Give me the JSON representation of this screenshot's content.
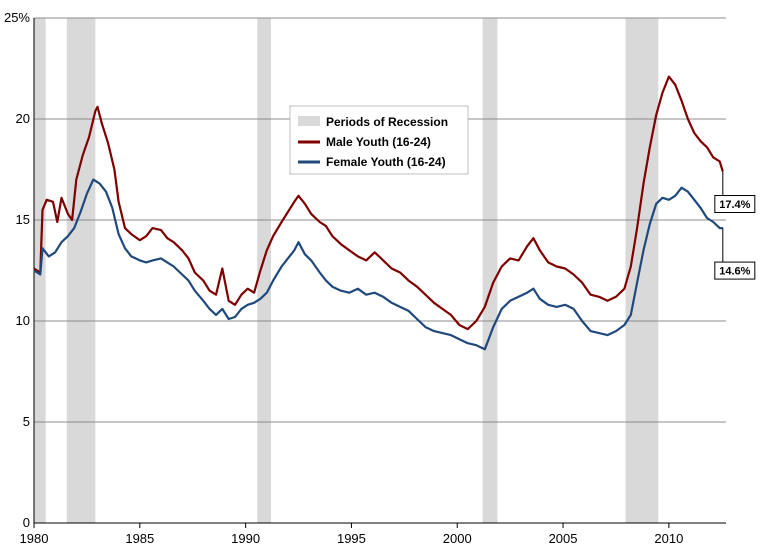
{
  "chart_data": {
    "type": "line",
    "title": "",
    "xlabel": "",
    "ylabel": "",
    "xlim": [
      1980.0,
      2012.7
    ],
    "ylim": [
      0,
      25
    ],
    "grid": true,
    "legend_position": "center-top",
    "x_ticks": [
      {
        "value": 1980,
        "label": "1980"
      },
      {
        "value": 1985,
        "label": "1985"
      },
      {
        "value": 1990,
        "label": "1990"
      },
      {
        "value": 1995,
        "label": "1995"
      },
      {
        "value": 2000,
        "label": "2000"
      },
      {
        "value": 2005,
        "label": "2005"
      },
      {
        "value": 2010,
        "label": "2010"
      }
    ],
    "y_ticks": [
      {
        "value": 0,
        "label": "0"
      },
      {
        "value": 5,
        "label": "5"
      },
      {
        "value": 10,
        "label": "10"
      },
      {
        "value": 15,
        "label": "15"
      },
      {
        "value": 20,
        "label": "20"
      },
      {
        "value": 25,
        "label": "25%"
      }
    ],
    "recessions": {
      "name": "Periods of Recession",
      "color": "#d9d9d9",
      "periods": [
        [
          1980.0,
          1980.55
        ],
        [
          1981.55,
          1982.9
        ],
        [
          1990.55,
          1991.2
        ],
        [
          2001.2,
          2001.9
        ],
        [
          2007.95,
          2009.5
        ]
      ]
    },
    "series": [
      {
        "name": "Male Youth (16-24)",
        "color": "#7f0000",
        "points": [
          [
            1980.0,
            12.6
          ],
          [
            1980.3,
            12.4
          ],
          [
            1980.4,
            15.5
          ],
          [
            1980.6,
            16.0
          ],
          [
            1980.9,
            15.9
          ],
          [
            1981.1,
            14.9
          ],
          [
            1981.3,
            16.1
          ],
          [
            1981.6,
            15.3
          ],
          [
            1981.8,
            15.0
          ],
          [
            1982.0,
            17.0
          ],
          [
            1982.3,
            18.2
          ],
          [
            1982.6,
            19.1
          ],
          [
            1982.9,
            20.4
          ],
          [
            1983.0,
            20.6
          ],
          [
            1983.2,
            19.8
          ],
          [
            1983.5,
            18.8
          ],
          [
            1983.8,
            17.5
          ],
          [
            1984.0,
            15.9
          ],
          [
            1984.3,
            14.6
          ],
          [
            1984.6,
            14.3
          ],
          [
            1985.0,
            14.0
          ],
          [
            1985.3,
            14.2
          ],
          [
            1985.6,
            14.6
          ],
          [
            1986.0,
            14.5
          ],
          [
            1986.3,
            14.1
          ],
          [
            1986.6,
            13.9
          ],
          [
            1987.0,
            13.5
          ],
          [
            1987.3,
            13.1
          ],
          [
            1987.6,
            12.4
          ],
          [
            1988.0,
            12.0
          ],
          [
            1988.3,
            11.5
          ],
          [
            1988.6,
            11.3
          ],
          [
            1988.9,
            12.6
          ],
          [
            1989.2,
            11.0
          ],
          [
            1989.5,
            10.8
          ],
          [
            1989.8,
            11.3
          ],
          [
            1990.1,
            11.6
          ],
          [
            1990.4,
            11.4
          ],
          [
            1990.7,
            12.5
          ],
          [
            1991.0,
            13.5
          ],
          [
            1991.3,
            14.2
          ],
          [
            1991.7,
            14.9
          ],
          [
            1992.0,
            15.4
          ],
          [
            1992.3,
            15.9
          ],
          [
            1992.5,
            16.2
          ],
          [
            1992.8,
            15.8
          ],
          [
            1993.1,
            15.3
          ],
          [
            1993.5,
            14.9
          ],
          [
            1993.8,
            14.7
          ],
          [
            1994.1,
            14.2
          ],
          [
            1994.5,
            13.8
          ],
          [
            1994.9,
            13.5
          ],
          [
            1995.3,
            13.2
          ],
          [
            1995.7,
            13.0
          ],
          [
            1996.1,
            13.4
          ],
          [
            1996.5,
            13.0
          ],
          [
            1996.9,
            12.6
          ],
          [
            1997.3,
            12.4
          ],
          [
            1997.7,
            12.0
          ],
          [
            1998.1,
            11.7
          ],
          [
            1998.5,
            11.3
          ],
          [
            1998.9,
            10.9
          ],
          [
            1999.3,
            10.6
          ],
          [
            1999.7,
            10.3
          ],
          [
            2000.1,
            9.8
          ],
          [
            2000.5,
            9.6
          ],
          [
            2000.9,
            10.0
          ],
          [
            2001.3,
            10.7
          ],
          [
            2001.7,
            11.9
          ],
          [
            2002.1,
            12.7
          ],
          [
            2002.5,
            13.1
          ],
          [
            2002.9,
            13.0
          ],
          [
            2003.3,
            13.7
          ],
          [
            2003.6,
            14.1
          ],
          [
            2003.9,
            13.5
          ],
          [
            2004.3,
            12.9
          ],
          [
            2004.7,
            12.7
          ],
          [
            2005.1,
            12.6
          ],
          [
            2005.5,
            12.3
          ],
          [
            2005.9,
            11.9
          ],
          [
            2006.3,
            11.3
          ],
          [
            2006.7,
            11.2
          ],
          [
            2007.1,
            11.0
          ],
          [
            2007.5,
            11.2
          ],
          [
            2007.9,
            11.6
          ],
          [
            2008.2,
            12.7
          ],
          [
            2008.5,
            14.6
          ],
          [
            2008.8,
            16.8
          ],
          [
            2009.1,
            18.6
          ],
          [
            2009.4,
            20.2
          ],
          [
            2009.7,
            21.3
          ],
          [
            2010.0,
            22.1
          ],
          [
            2010.3,
            21.7
          ],
          [
            2010.6,
            20.9
          ],
          [
            2010.9,
            20.0
          ],
          [
            2011.2,
            19.3
          ],
          [
            2011.5,
            18.9
          ],
          [
            2011.8,
            18.6
          ],
          [
            2012.1,
            18.1
          ],
          [
            2012.4,
            17.9
          ],
          [
            2012.55,
            17.4
          ]
        ],
        "last_value_label": "17.4%"
      },
      {
        "name": "Female Youth (16-24)",
        "color": "#1f497d",
        "points": [
          [
            1980.0,
            12.5
          ],
          [
            1980.3,
            12.3
          ],
          [
            1980.4,
            13.6
          ],
          [
            1980.7,
            13.2
          ],
          [
            1981.0,
            13.4
          ],
          [
            1981.3,
            13.9
          ],
          [
            1981.6,
            14.2
          ],
          [
            1981.9,
            14.6
          ],
          [
            1982.2,
            15.4
          ],
          [
            1982.5,
            16.3
          ],
          [
            1982.8,
            17.0
          ],
          [
            1983.1,
            16.8
          ],
          [
            1983.4,
            16.4
          ],
          [
            1983.7,
            15.6
          ],
          [
            1984.0,
            14.3
          ],
          [
            1984.3,
            13.6
          ],
          [
            1984.6,
            13.2
          ],
          [
            1985.0,
            13.0
          ],
          [
            1985.3,
            12.9
          ],
          [
            1985.6,
            13.0
          ],
          [
            1986.0,
            13.1
          ],
          [
            1986.3,
            12.9
          ],
          [
            1986.6,
            12.7
          ],
          [
            1987.0,
            12.3
          ],
          [
            1987.3,
            12.0
          ],
          [
            1987.6,
            11.5
          ],
          [
            1988.0,
            11.0
          ],
          [
            1988.3,
            10.6
          ],
          [
            1988.6,
            10.3
          ],
          [
            1988.9,
            10.6
          ],
          [
            1989.2,
            10.1
          ],
          [
            1989.5,
            10.2
          ],
          [
            1989.8,
            10.6
          ],
          [
            1990.1,
            10.8
          ],
          [
            1990.4,
            10.9
          ],
          [
            1990.7,
            11.1
          ],
          [
            1991.0,
            11.4
          ],
          [
            1991.3,
            12.0
          ],
          [
            1991.7,
            12.7
          ],
          [
            1992.0,
            13.1
          ],
          [
            1992.3,
            13.5
          ],
          [
            1992.5,
            13.9
          ],
          [
            1992.8,
            13.3
          ],
          [
            1993.1,
            13.0
          ],
          [
            1993.5,
            12.4
          ],
          [
            1993.8,
            12.0
          ],
          [
            1994.1,
            11.7
          ],
          [
            1994.5,
            11.5
          ],
          [
            1994.9,
            11.4
          ],
          [
            1995.3,
            11.6
          ],
          [
            1995.7,
            11.3
          ],
          [
            1996.1,
            11.4
          ],
          [
            1996.5,
            11.2
          ],
          [
            1996.9,
            10.9
          ],
          [
            1997.3,
            10.7
          ],
          [
            1997.7,
            10.5
          ],
          [
            1998.1,
            10.1
          ],
          [
            1998.5,
            9.7
          ],
          [
            1998.9,
            9.5
          ],
          [
            1999.3,
            9.4
          ],
          [
            1999.7,
            9.3
          ],
          [
            2000.1,
            9.1
          ],
          [
            2000.5,
            8.9
          ],
          [
            2000.9,
            8.8
          ],
          [
            2001.3,
            8.6
          ],
          [
            2001.7,
            9.7
          ],
          [
            2002.1,
            10.6
          ],
          [
            2002.5,
            11.0
          ],
          [
            2002.9,
            11.2
          ],
          [
            2003.3,
            11.4
          ],
          [
            2003.6,
            11.6
          ],
          [
            2003.9,
            11.1
          ],
          [
            2004.3,
            10.8
          ],
          [
            2004.7,
            10.7
          ],
          [
            2005.1,
            10.8
          ],
          [
            2005.5,
            10.6
          ],
          [
            2005.9,
            10.0
          ],
          [
            2006.3,
            9.5
          ],
          [
            2006.7,
            9.4
          ],
          [
            2007.1,
            9.3
          ],
          [
            2007.5,
            9.5
          ],
          [
            2007.9,
            9.8
          ],
          [
            2008.2,
            10.3
          ],
          [
            2008.5,
            11.9
          ],
          [
            2008.8,
            13.5
          ],
          [
            2009.1,
            14.8
          ],
          [
            2009.4,
            15.8
          ],
          [
            2009.7,
            16.1
          ],
          [
            2010.0,
            16.0
          ],
          [
            2010.3,
            16.2
          ],
          [
            2010.6,
            16.6
          ],
          [
            2010.9,
            16.4
          ],
          [
            2011.2,
            16.0
          ],
          [
            2011.5,
            15.6
          ],
          [
            2011.8,
            15.1
          ],
          [
            2012.1,
            14.9
          ],
          [
            2012.4,
            14.6
          ],
          [
            2012.55,
            14.6
          ]
        ],
        "last_value_label": "14.6%"
      }
    ]
  }
}
